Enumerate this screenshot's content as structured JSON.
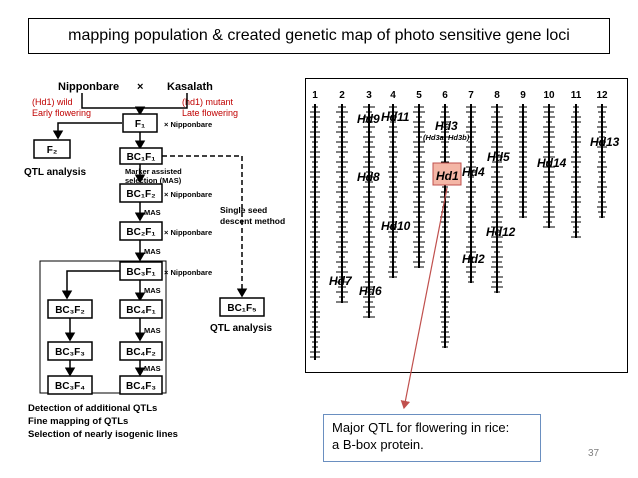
{
  "slide": {
    "title": "mapping population & created genetic map of photo sensitive gene loci",
    "page_number": "37"
  },
  "flowchart": {
    "parent1": "Nipponbare",
    "parent2": "Kasalath",
    "cross_symbol": "×",
    "note_left_line1": "(Hd1)  wild",
    "note_left_line2": "Early flowering",
    "note_right_line1": "(hd1) mutant",
    "note_right_line2": "Late flowering",
    "nipponbare_label": "× Nipponbare",
    "mas_label": "MAS",
    "mas_full_line1": "Marker assisted",
    "mas_full_line2": "selection (MAS)",
    "ssd_line1": "Single seed",
    "ssd_line2": "descent method",
    "qtl_analysis": "QTL analysis",
    "boxes": {
      "f1": "F₁",
      "f2": "F₂",
      "bc1f1": "BC₁F₁",
      "bc1f2": "BC₁F₂",
      "bc2f1": "BC₂F₁",
      "bc3f1": "BC₃F₁",
      "bc3f2": "BC₃F₂",
      "bc3f3": "BC₃F₃",
      "bc3f4": "BC₃F₄",
      "bc4f1": "BC₄F₁",
      "bc4f2": "BC₄F₂",
      "bc4f3": "BC₄F₃",
      "bc1f5": "BC₁F₅"
    },
    "footer_line1": "Detection of additional QTLs",
    "footer_line2": "Fine mapping of QTLs",
    "footer_line3": "Selection of nearly isogenic lines"
  },
  "genetic_map": {
    "chromosomes": [
      "1",
      "2",
      "3",
      "4",
      "5",
      "6",
      "7",
      "8",
      "9",
      "10",
      "11",
      "12"
    ],
    "loci": [
      {
        "label": "Hd9",
        "chromosome": "3"
      },
      {
        "label": "Hd11",
        "chromosome": "4"
      },
      {
        "label": "Hd3",
        "chromosome": "6"
      },
      {
        "label": "(Hd3a, Hd3b)",
        "chromosome": "6"
      },
      {
        "label": "Hd13",
        "chromosome": "12"
      },
      {
        "label": "Hd5",
        "chromosome": "8"
      },
      {
        "label": "Hd14",
        "chromosome": "10"
      },
      {
        "label": "Hd8",
        "chromosome": "3"
      },
      {
        "label": "Hd1",
        "chromosome": "6",
        "highlight": true
      },
      {
        "label": "Hd4",
        "chromosome": "7"
      },
      {
        "label": "Hd10",
        "chromosome": "4"
      },
      {
        "label": "Hd12",
        "chromosome": "8"
      },
      {
        "label": "Hd2",
        "chromosome": "7"
      },
      {
        "label": "Hd7",
        "chromosome": "2"
      },
      {
        "label": "Hd6",
        "chromosome": "3"
      }
    ],
    "highlight_color": "#f4b6a6",
    "arrow_color": "#c0504d"
  },
  "callout": {
    "line1": "Major QTL for flowering in rice:",
    "line2": "a B-box protein."
  }
}
